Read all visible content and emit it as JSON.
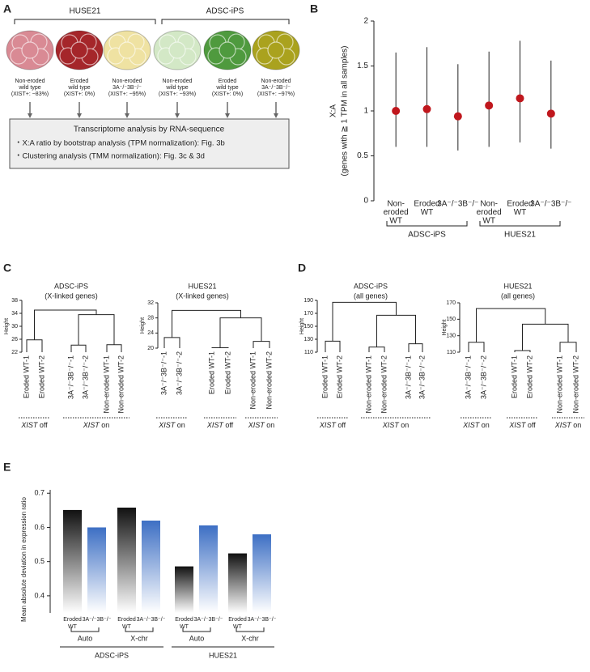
{
  "panel_labels": [
    "A",
    "B",
    "C",
    "D",
    "E"
  ],
  "panel_a": {
    "groups": [
      "HUSE21",
      "ADSC-iPS"
    ],
    "samples": [
      {
        "color": "#d98a94",
        "caption": [
          "Non-eroded",
          "wild type",
          "(XIST+: ~83%)"
        ]
      },
      {
        "color": "#a5262a",
        "caption": [
          "Eroded",
          "wild type",
          "(XIST+: 0%)"
        ]
      },
      {
        "color": "#efe2a2",
        "caption": [
          "Non-eroded",
          "3A⁻/⁻3B⁻/⁻",
          "(XIST+: ~95%)"
        ]
      },
      {
        "color": "#d3e8c6",
        "caption": [
          "Non-eroded",
          "wild type",
          "(XIST+: ~93%)"
        ]
      },
      {
        "color": "#4f9a3e",
        "caption": [
          "Eroded",
          "wild type",
          "(XIST+: 0%)"
        ]
      },
      {
        "color": "#aaa21e",
        "caption": [
          "Non-eroded",
          "3A⁻/⁻3B⁻/⁻",
          "(XIST+: ~97%)"
        ]
      }
    ],
    "box": {
      "title": "Transcriptome analysis by RNA-sequence",
      "items": [
        "・X:A ratio by bootstrap analysis (TPM normalization): Fig. 3b",
        "・Clustering analysis (TMM normalization): Fig. 3c & 3d"
      ]
    }
  },
  "chart_data": [
    {
      "type": "errorbar",
      "ylabel": [
        "X:A",
        "(genes with ≧ 1 TPM in all samples)"
      ],
      "categories": [
        [
          "Non-",
          "eroded",
          "WT"
        ],
        [
          "Eroded",
          "WT"
        ],
        [
          "3A⁻/⁻3B⁻/⁻"
        ],
        [
          "Non-",
          "eroded",
          "WT"
        ],
        [
          "Eroded",
          "WT"
        ],
        [
          "3A⁻/⁻3B⁻/⁻"
        ]
      ],
      "groups": [
        "ADSC-iPS",
        "HUES21"
      ],
      "values": [
        1.0,
        1.02,
        0.94,
        1.06,
        1.14,
        0.97
      ],
      "lower": [
        0.6,
        0.6,
        0.56,
        0.6,
        0.65,
        0.58
      ],
      "upper": [
        1.65,
        1.71,
        1.52,
        1.66,
        1.78,
        1.56
      ],
      "color": "#c0171d",
      "ylim": [
        0,
        2
      ],
      "yticks": [
        0,
        0.5,
        1,
        1.5,
        2
      ]
    },
    {
      "type": "dendrogram",
      "title": "ADSC-iPS",
      "subtitle": "(X-linked genes)",
      "ylabel": "Height",
      "ylim": [
        22,
        38
      ],
      "yticks": [
        22,
        26,
        30,
        34,
        38
      ],
      "tree": {
        "height": 35,
        "children": [
          {
            "height": 25.8,
            "children": [
              {
                "label": "Eroded WT-1"
              },
              {
                "label": "Eroded WT-2"
              }
            ]
          },
          {
            "height": 33.6,
            "children": [
              {
                "height": 24.2,
                "children": [
                  {
                    "label": "3A⁻/⁻3B⁻/⁻-1"
                  },
                  {
                    "label": "3A⁻/⁻3B⁻/⁻-2"
                  }
                ]
              },
              {
                "height": 24.3,
                "children": [
                  {
                    "label": "Non-eroded WT-1"
                  },
                  {
                    "label": "Non-eroded WT-2"
                  }
                ]
              }
            ]
          }
        ]
      },
      "footers": [
        {
          "gene": "XIST",
          "state": "off"
        },
        {
          "gene": "XIST",
          "state": "on"
        }
      ]
    },
    {
      "type": "dendrogram",
      "title": "HUES21",
      "subtitle": "(X-linked genes)",
      "ylabel": "Height",
      "ylim": [
        20,
        32
      ],
      "yticks": [
        20,
        24,
        28,
        32
      ],
      "tree": {
        "height": 30,
        "children": [
          {
            "height": 22.8,
            "children": [
              {
                "label": "3A⁻/⁻3B⁻/⁻-1"
              },
              {
                "label": "3A⁻/⁻3B⁻/⁻-2"
              }
            ]
          },
          {
            "height": 28,
            "children": [
              {
                "height": 20.1,
                "children": [
                  {
                    "label": "Eroded WT-1"
                  },
                  {
                    "label": "Eroded WT-2"
                  }
                ]
              },
              {
                "height": 21.8,
                "children": [
                  {
                    "label": "Non-eroded WT-1"
                  },
                  {
                    "label": "Non-eroded WT-2"
                  }
                ]
              }
            ]
          }
        ]
      },
      "footers": [
        {
          "gene": "XIST",
          "state": "on"
        },
        {
          "gene": "XIST",
          "state": "off"
        },
        {
          "gene": "XIST",
          "state": "on"
        }
      ]
    },
    {
      "type": "dendrogram",
      "title": "ADSC-iPS",
      "subtitle": "(all genes)",
      "ylabel": "Height",
      "ylim": [
        110,
        190
      ],
      "yticks": [
        110,
        130,
        150,
        170,
        190
      ],
      "tree": {
        "height": 187,
        "children": [
          {
            "height": 127,
            "children": [
              {
                "label": "Eroded WT-1"
              },
              {
                "label": "Eroded WT-2"
              }
            ]
          },
          {
            "height": 167,
            "children": [
              {
                "height": 118,
                "children": [
                  {
                    "label": "Non-eroded WT-1"
                  },
                  {
                    "label": "Non-eroded WT-2"
                  }
                ]
              },
              {
                "height": 123,
                "children": [
                  {
                    "label": "3A⁻/⁻3B⁻/⁻-1"
                  },
                  {
                    "label": "3A⁻/⁻3B⁻/⁻-2"
                  }
                ]
              }
            ]
          }
        ]
      },
      "footers": [
        {
          "gene": "XIST",
          "state": "off"
        },
        {
          "gene": "XIST",
          "state": "on"
        }
      ]
    },
    {
      "type": "dendrogram",
      "title": "HUES21",
      "subtitle": "(all genes)",
      "ylabel": "Height",
      "ylim": [
        110,
        170
      ],
      "yticks": [
        110,
        130,
        150,
        170
      ],
      "tree": {
        "height": 163,
        "children": [
          {
            "height": 122,
            "children": [
              {
                "label": "3A⁻/⁻3B⁻/⁻-1"
              },
              {
                "label": "3A⁻/⁻3B⁻/⁻-2"
              }
            ]
          },
          {
            "height": 144,
            "children": [
              {
                "height": 112,
                "children": [
                  {
                    "label": "Eroded WT-1"
                  },
                  {
                    "label": "Eroded WT-2"
                  }
                ]
              },
              {
                "height": 122,
                "children": [
                  {
                    "label": "Non-eroded WT-1"
                  },
                  {
                    "label": "Non-eroded WT-2"
                  }
                ]
              }
            ]
          }
        ]
      },
      "footers": [
        {
          "gene": "XIST",
          "state": "on"
        },
        {
          "gene": "XIST",
          "state": "off"
        },
        {
          "gene": "XIST",
          "state": "on"
        }
      ]
    },
    {
      "type": "bar",
      "ylabel": "Mean absolute deviation in expression ratio",
      "categories": [
        [
          "Eroded",
          "WT"
        ],
        [
          "3A⁻/⁻3B⁻/⁻"
        ],
        [
          "Eroded",
          "WT"
        ],
        [
          "3A⁻/⁻3B⁻/⁻"
        ],
        [
          "Eroded",
          "WT"
        ],
        [
          "3A⁻/⁻3B⁻/⁻"
        ],
        [
          "Eroded",
          "WT"
        ],
        [
          "3A⁻/⁻3B⁻/⁻"
        ]
      ],
      "values": [
        0.651,
        0.6,
        0.658,
        0.62,
        0.486,
        0.606,
        0.524,
        0.58
      ],
      "colors": [
        "#111111",
        "#3d6fc4",
        "#111111",
        "#3d6fc4",
        "#111111",
        "#3d6fc4",
        "#111111",
        "#3d6fc4"
      ],
      "subgroups": [
        "Auto",
        "X-chr",
        "Auto",
        "X-chr"
      ],
      "groups": [
        "ADSC-iPS",
        "HUES21"
      ],
      "ylim": [
        0.35,
        0.71
      ],
      "yticks": [
        0.4,
        0.5,
        0.6,
        0.7
      ]
    }
  ]
}
